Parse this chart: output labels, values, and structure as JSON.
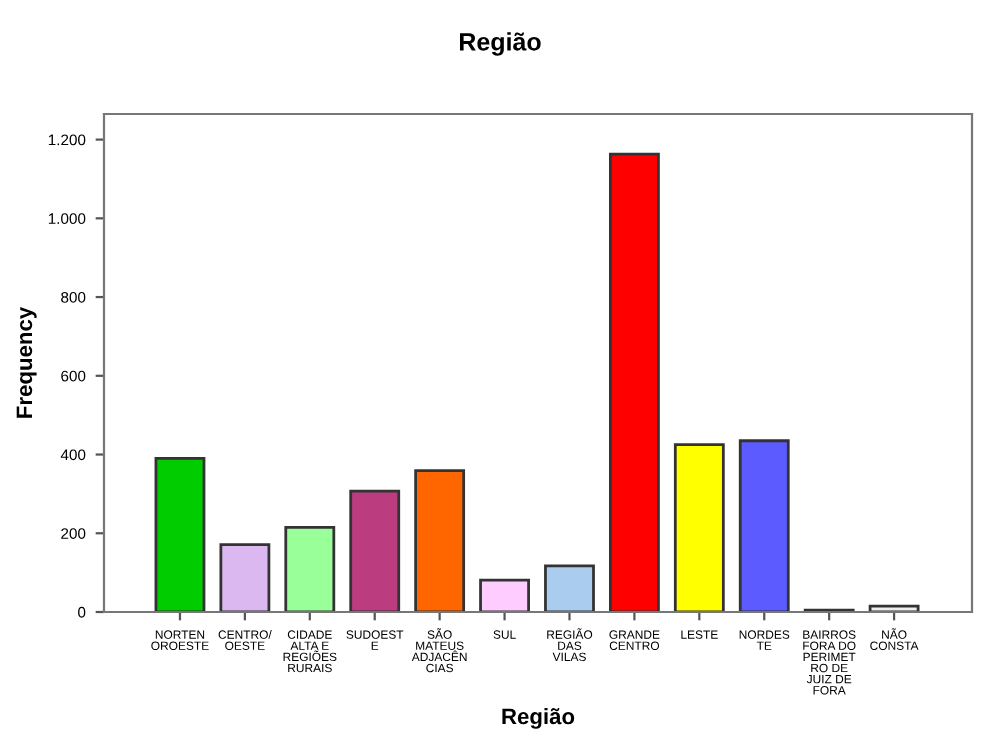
{
  "chart_data": {
    "type": "bar",
    "title": "Região",
    "xlabel": "Região",
    "ylabel": "Frequency",
    "categories": [
      "NORTEN\nOROESTE",
      "CENTRO/\nOESTE",
      "CIDADE\nALTA E\nREGIÕES\nRURAIS",
      "SUDOEST\nE",
      "SÃO\nMATEUS\nADJACÊN\nCIAS",
      "SUL",
      "REGIÃO\nDAS\nVILAS",
      "GRANDE\nCENTRO",
      "LESTE",
      "NORDES\nTE",
      "BAIRROS\nFORA DO\nPERIMET\nRO DE\nJUIZ DE\nFORA",
      "NÃO\nCONSTA"
    ],
    "values": [
      390,
      171,
      215,
      307,
      359,
      81,
      117,
      1163,
      425,
      435,
      5,
      15
    ],
    "colors": [
      "#00cc00",
      "#dcb8f0",
      "#99ff99",
      "#bb3d7f",
      "#ff6600",
      "#ffccff",
      "#aaccee",
      "#ff0000",
      "#ffff00",
      "#5b5bff",
      "#333333",
      "#eeeeee"
    ],
    "ylim": [
      0,
      1265
    ],
    "yticks": [
      0,
      200,
      400,
      600,
      800,
      {
        "value": 1000,
        "label": "1.000"
      },
      {
        "value": 1200,
        "label": "1.200"
      }
    ],
    "grid": false,
    "legend": false
  }
}
